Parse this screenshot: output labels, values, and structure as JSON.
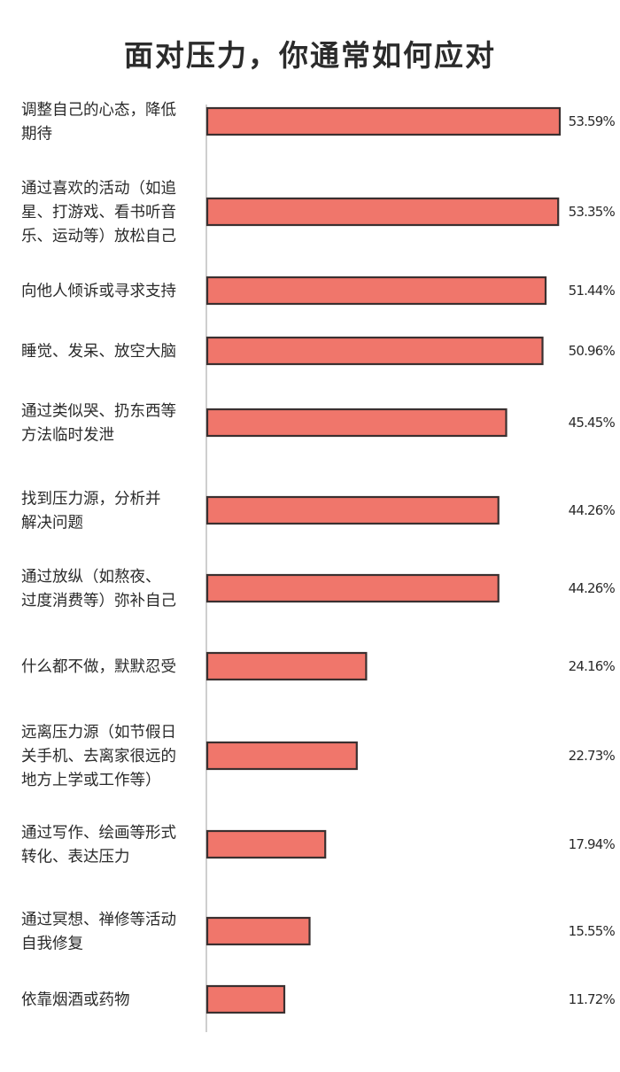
{
  "chart_data": {
    "type": "bar",
    "orientation": "horizontal",
    "title": "面对压力，你通常如何应对",
    "categories": [
      "调整自己的心态，降低期待",
      "通过喜欢的活动（如追星、打游戏、看书听音乐、运动等）放松自己",
      "向他人倾诉或寻求支持",
      "睡觉、发呆、放空大脑",
      "通过类似哭、扔东西等方法临时发泄",
      "找到压力源，分析并解决问题",
      "通过放纵（如熬夜、过度消费等）弥补自己",
      "什么都不做，默默忍受",
      "远离压力源（如节假日关手机、去离家很远的地方上学或工作等）",
      "通过写作、绘画等形式转化、表达压力",
      "通过冥想、禅修等活动自我修复",
      "依靠烟酒或药物"
    ],
    "category_lines": [
      [
        "调整自己的心态，降低",
        "期待"
      ],
      [
        "通过喜欢的活动（如追",
        "星、打游戏、看书听音",
        "乐、运动等）放松自己"
      ],
      [
        "向他人倾诉或寻求支持"
      ],
      [
        "睡觉、发呆、放空大脑"
      ],
      [
        "通过类似哭、扔东西等",
        "方法临时发泄"
      ],
      [
        "找到压力源，分析并",
        "解决问题"
      ],
      [
        "通过放纵（如熬夜、",
        "过度消费等）弥补自己"
      ],
      [
        "什么都不做，默默忍受"
      ],
      [
        "远离压力源（如节假日",
        "关手机、去离家很远的",
        "地方上学或工作等）"
      ],
      [
        "通过写作、绘画等形式",
        "转化、表达压力"
      ],
      [
        "通过冥想、禅修等活动",
        "自我修复"
      ],
      [
        "依靠烟酒或药物"
      ]
    ],
    "values": [
      53.59,
      53.35,
      51.44,
      50.96,
      45.45,
      44.26,
      44.26,
      24.16,
      22.73,
      17.94,
      15.55,
      11.72
    ],
    "value_labels": [
      "53.59%",
      "53.35%",
      "51.44%",
      "50.96%",
      "45.45%",
      "44.26%",
      "44.26%",
      "24.16%",
      "22.73%",
      "17.94%",
      "15.55%",
      "11.72%"
    ],
    "unit": "%",
    "bar_color": "#f0766b",
    "bar_outline_color": "#3a3030",
    "axis_color": "#cfcfcf",
    "grid": false,
    "legend": "none"
  }
}
